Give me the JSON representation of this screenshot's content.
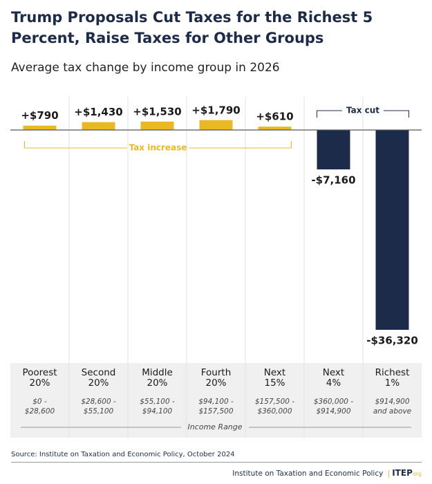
{
  "chart_data": {
    "type": "bar",
    "title": "Trump Proposals Cut Taxes for the Richest 5\nPercent, Raise Taxes for Other Groups",
    "subtitle": "Average tax change by income group in 2026",
    "categories": [
      "Poorest\n20%",
      "Second\n20%",
      "Middle\n20%",
      "Fourth\n20%",
      "Next\n15%",
      "Next\n4%",
      "Richest\n1%"
    ],
    "ranges": [
      "$0 -\n$28,600",
      "$28,600 -\n$55,100",
      "$55,100 -\n$94,100",
      "$94,100 -\n$157,500",
      "$157,500 -\n$360,000",
      "$360,000 -\n$914,900",
      "$914,900\nand above"
    ],
    "x_label": "Income Range",
    "values": [
      790,
      1430,
      1530,
      1790,
      610,
      -7160,
      -36320
    ],
    "value_labels": [
      "+$790",
      "+$1,430",
      "+$1,530",
      "+$1,790",
      "+$610",
      "-$7,160",
      "-$36,320"
    ],
    "colors": {
      "increase": "#e8b923",
      "cut": "#1c2b4a"
    },
    "annotations": {
      "increase": "Tax increase",
      "cut": "Tax cut"
    },
    "source": "Source: Institute on Taxation and Economic Policy, October 2024",
    "footer": {
      "org": "Institute on Taxation and Economic Policy",
      "separator": "|",
      "brand": "ITEP",
      "brand_suffix": "org"
    }
  }
}
